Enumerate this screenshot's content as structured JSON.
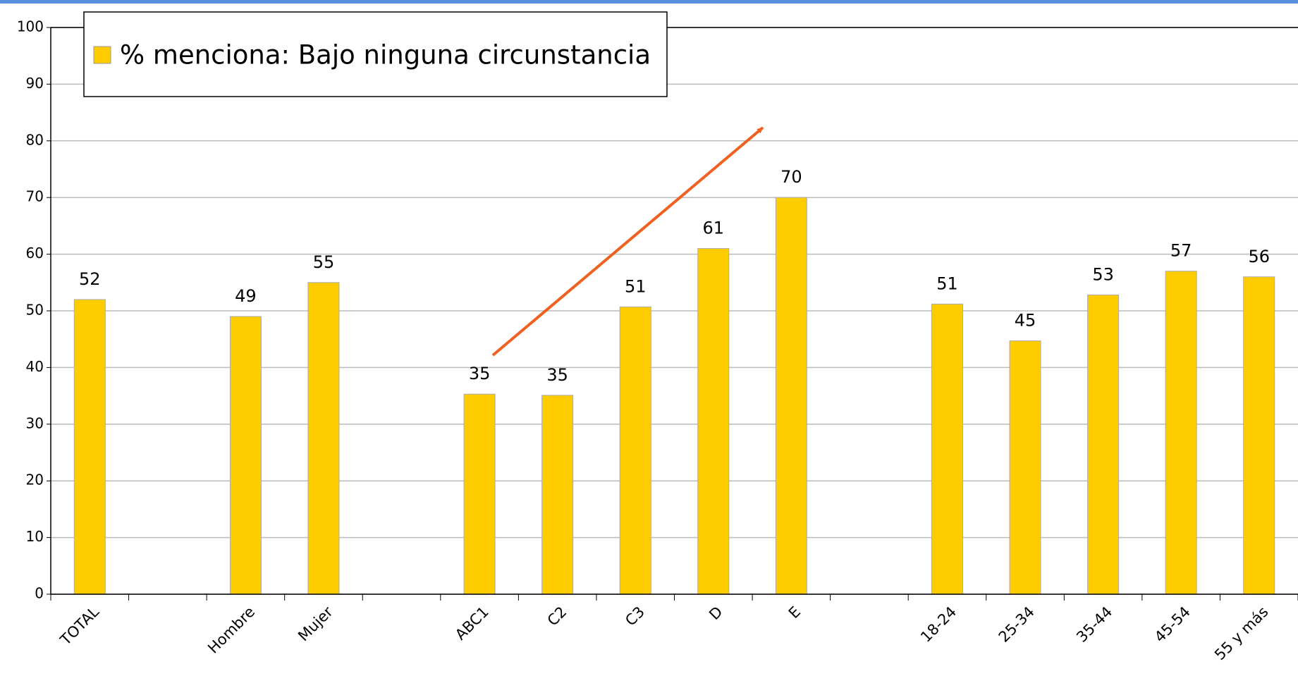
{
  "chart_data": {
    "type": "bar",
    "categories": [
      "TOTAL",
      null,
      "Hombre",
      "Mujer",
      null,
      "ABC1",
      "C2",
      "C3",
      "D",
      "E",
      null,
      "18-24",
      "25-34",
      "35-44",
      "45-54",
      "55 y más"
    ],
    "series": [
      {
        "name": "% menciona: Bajo ninguna circunstancia",
        "color": "#ffcc00",
        "values": [
          52,
          null,
          49,
          55,
          null,
          35.3,
          35.1,
          50.7,
          61,
          70,
          null,
          51.2,
          44.7,
          52.8,
          57,
          56
        ],
        "value_labels": [
          "52",
          null,
          "49",
          "55",
          null,
          "35",
          "35",
          "51",
          "61",
          "70",
          null,
          "51",
          "45",
          "53",
          "57",
          "56"
        ]
      }
    ],
    "ylim": [
      0,
      100
    ],
    "yticks": [
      0,
      10,
      20,
      30,
      40,
      50,
      60,
      70,
      80,
      90,
      100
    ],
    "grid": true
  }
}
